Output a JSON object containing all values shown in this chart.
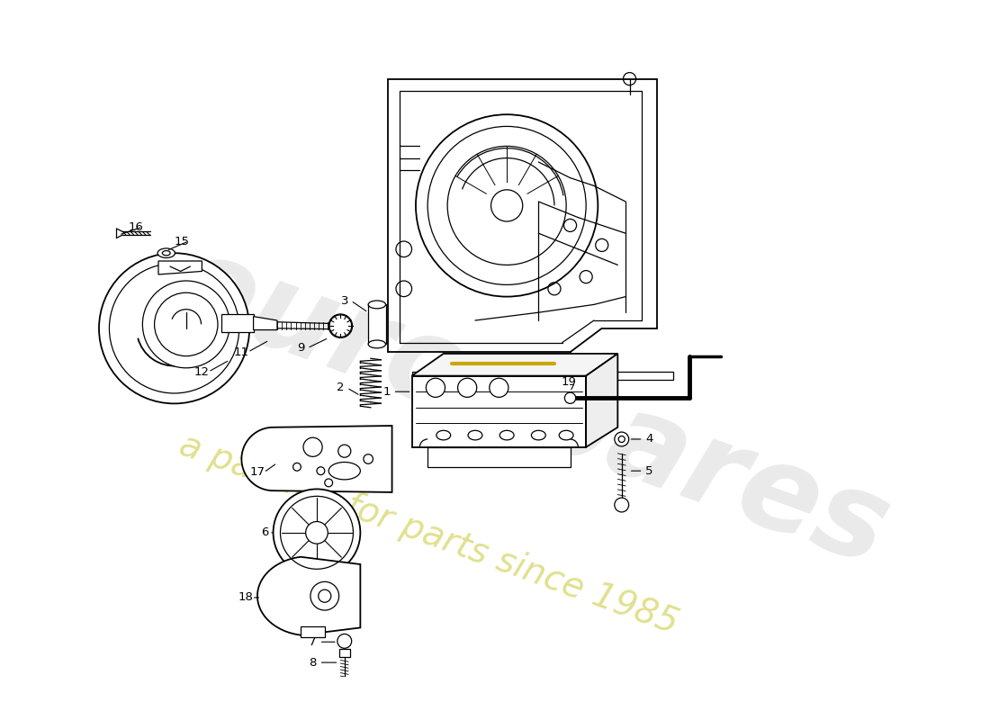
{
  "background_color": "#ffffff",
  "line_color": "#000000",
  "watermark_text1": "eurospares",
  "watermark_text2": "a passion for parts since 1985",
  "watermark_color1": "#c8c8c8",
  "watermark_color2": "#d4c84a",
  "figsize": [
    11.0,
    8.0
  ],
  "dpi": 100,
  "yellow_line_color": "#c8a800"
}
